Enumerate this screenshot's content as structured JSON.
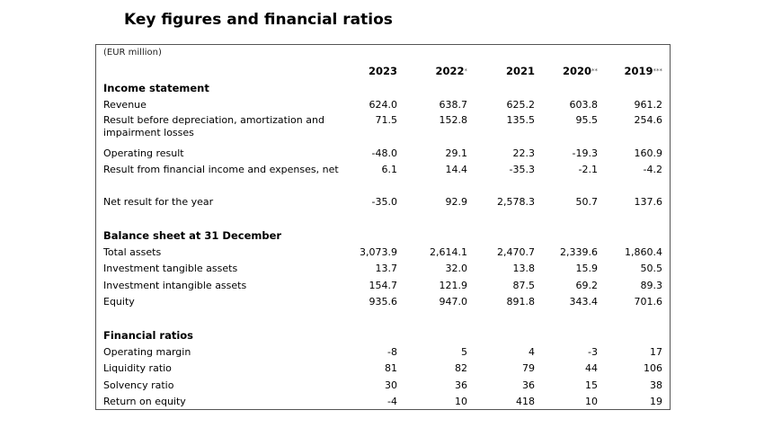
{
  "title": "Key figures and financial ratios",
  "unit": "(EUR million)",
  "columns": [
    {
      "year": "2023",
      "mark": ""
    },
    {
      "year": "2022",
      "mark": "*"
    },
    {
      "year": "2021",
      "mark": ""
    },
    {
      "year": "2020",
      "mark": "**"
    },
    {
      "year": "2019",
      "mark": "***"
    }
  ],
  "income": {
    "heading": "Income statement",
    "rows": [
      {
        "label": "Revenue",
        "values": [
          "624.0",
          "638.7",
          "625.2",
          "603.8",
          "961.2"
        ]
      },
      {
        "label": "Result before depreciation, amortization and impairment losses",
        "values": [
          "71.5",
          "152.8",
          "135.5",
          "95.5",
          "254.6"
        ]
      },
      {
        "label": "Operating result",
        "values": [
          "-48.0",
          "29.1",
          "22.3",
          "-19.3",
          "160.9"
        ]
      },
      {
        "label": "Result from financial income and expenses, net",
        "values": [
          "6.1",
          "14.4",
          "-35.3",
          "-2.1",
          "-4.2"
        ]
      },
      {
        "label": "Net result for the year",
        "values": [
          "-35.0",
          "92.9",
          "2,578.3",
          "50.7",
          "137.6"
        ]
      }
    ]
  },
  "balance": {
    "heading": "Balance sheet at 31 December",
    "rows": [
      {
        "label": "Total assets",
        "values": [
          "3,073.9",
          "2,614.1",
          "2,470.7",
          "2,339.6",
          "1,860.4"
        ]
      },
      {
        "label": "Investment tangible assets",
        "values": [
          "13.7",
          "32.0",
          "13.8",
          "15.9",
          "50.5"
        ]
      },
      {
        "label": "Investment intangible assets",
        "values": [
          "154.7",
          "121.9",
          "87.5",
          "69.2",
          "89.3"
        ]
      },
      {
        "label": "Equity",
        "values": [
          "935.6",
          "947.0",
          "891.8",
          "343.4",
          "701.6"
        ]
      }
    ]
  },
  "ratios": {
    "heading": "Financial ratios",
    "rows": [
      {
        "label": "Operating margin",
        "values": [
          "-8",
          "5",
          "4",
          "-3",
          "17"
        ]
      },
      {
        "label": "Liquidity ratio",
        "values": [
          "81",
          "82",
          "79",
          "44",
          "106"
        ]
      },
      {
        "label": "Solvency ratio",
        "values": [
          "30",
          "36",
          "36",
          "15",
          "38"
        ]
      },
      {
        "label": "Return on equity",
        "values": [
          "-4",
          "10",
          "418",
          "10",
          "19"
        ]
      }
    ]
  }
}
